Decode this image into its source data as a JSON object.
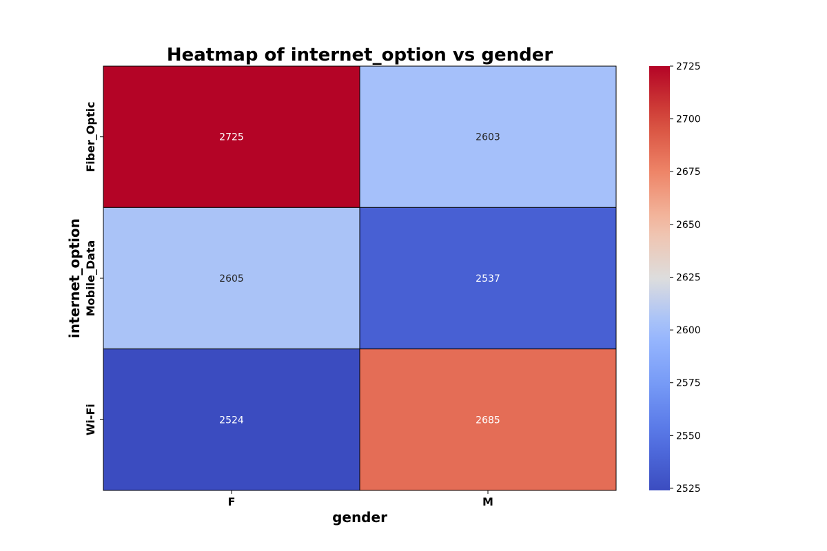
{
  "chart_data": {
    "type": "heatmap",
    "title": "Heatmap of internet_option vs gender",
    "xlabel": "gender",
    "ylabel": "internet_option",
    "x_categories": [
      "F",
      "M"
    ],
    "y_categories": [
      "Fiber_Optic",
      "Mobile_Data",
      "Wi-Fi"
    ],
    "values": [
      [
        2725,
        2603
      ],
      [
        2605,
        2537
      ],
      [
        2524,
        2685
      ]
    ],
    "colormap": "coolwarm",
    "colorbar": {
      "vmin": 2524,
      "vmax": 2725,
      "ticks": [
        2525,
        2550,
        2575,
        2600,
        2625,
        2650,
        2675,
        2700,
        2725
      ]
    },
    "annotations": true,
    "legend": "colorbar-right"
  }
}
